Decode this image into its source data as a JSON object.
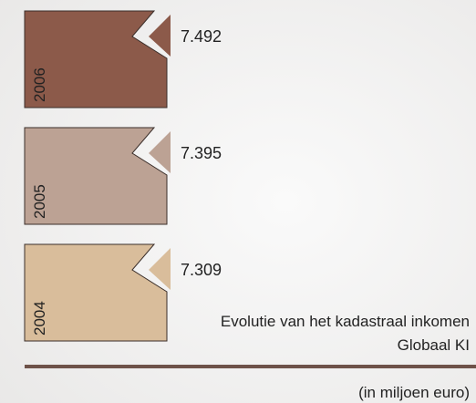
{
  "items": [
    {
      "year": "2006",
      "value": "7.492",
      "color": "#8c5a4a"
    },
    {
      "year": "2005",
      "value": "7.395",
      "color": "#bca294"
    },
    {
      "year": "2004",
      "value": "7.309",
      "color": "#d9bd9b"
    }
  ],
  "caption": {
    "line1": "Evolutie van het kadastraal inkomen",
    "line2": "Globaal KI"
  },
  "unit": "(in miljoen euro)"
}
